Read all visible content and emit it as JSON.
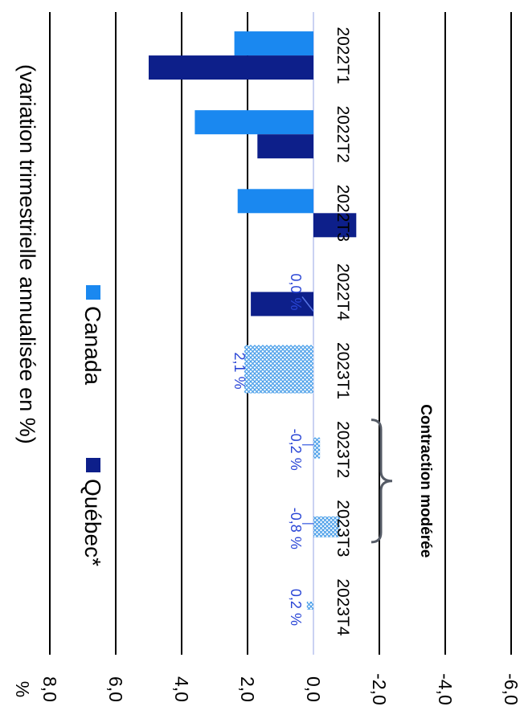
{
  "chart_data": {
    "type": "bar",
    "subtitle": "(variation trimestrielle annualisée en %)",
    "yunit": "%",
    "yticks": [
      "8,0",
      "6,0",
      "4,0",
      "2,0",
      "0,0",
      "-2,0",
      "-4,0",
      "-6,0"
    ],
    "ylim": [
      -6,
      8
    ],
    "categories": [
      "2022T1",
      "2022T2",
      "2022T3",
      "2022T4",
      "2023T1",
      "2023T2",
      "2023T3",
      "2023T4"
    ],
    "series": [
      {
        "name": "Québec*",
        "color": "#0d1f8a",
        "values": [
          5.0,
          1.7,
          -1.3,
          1.9,
          null,
          null,
          null,
          null
        ]
      },
      {
        "name": "Canada",
        "color": "#1a88f0",
        "values": [
          2.4,
          3.6,
          2.3,
          null,
          null,
          null,
          null,
          null
        ]
      }
    ],
    "forecast": {
      "color": "#5aa7ee",
      "values": [
        null,
        null,
        null,
        0.0,
        2.1,
        -0.2,
        -0.8,
        0.2
      ],
      "labels": [
        "",
        "",
        "",
        "0,0 %",
        "2,1 %",
        "-0,2 %",
        "-0,8 %",
        "0,2 %"
      ]
    },
    "annotation": {
      "text": "Contraction modérée",
      "from": "2023T2",
      "to": "2023T3"
    },
    "grid": true,
    "legend_position": "top"
  }
}
